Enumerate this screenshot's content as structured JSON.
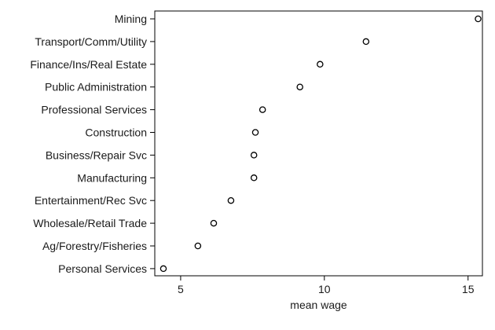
{
  "chart_data": {
    "type": "scatter",
    "orientation": "dot-plot-horizontal",
    "title": "",
    "xlabel": "mean wage",
    "ylabel": "",
    "xlim": [
      4.1,
      15.5
    ],
    "xticks": [
      5,
      10,
      15
    ],
    "grid": false,
    "legend": "none",
    "marker": "hollow-circle",
    "categories": [
      "Mining",
      "Transport/Comm/Utility",
      "Finance/Ins/Real Estate",
      "Public Administration",
      "Professional Services",
      "Construction",
      "Business/Repair Svc",
      "Manufacturing",
      "Entertainment/Rec Svc",
      "Wholesale/Retail Trade",
      "Ag/Forestry/Fisheries",
      "Personal Services"
    ],
    "values": [
      15.35,
      11.45,
      9.85,
      9.15,
      7.85,
      7.6,
      7.55,
      7.55,
      6.75,
      6.15,
      5.6,
      4.4
    ]
  }
}
